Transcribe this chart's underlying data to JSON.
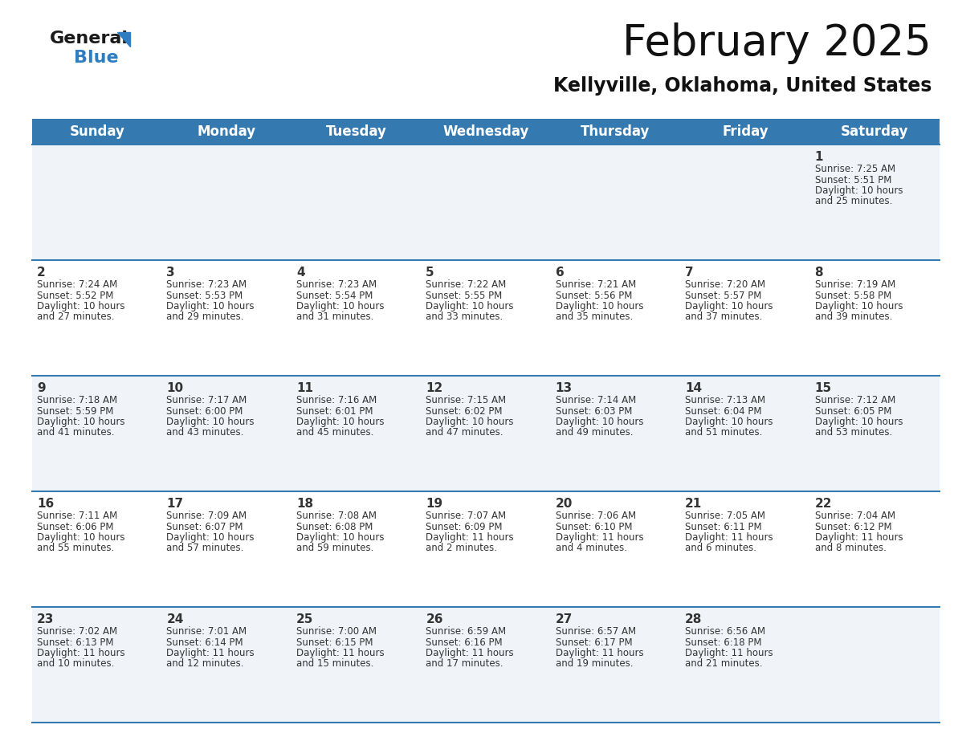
{
  "title": "February 2025",
  "subtitle": "Kellyville, Oklahoma, United States",
  "header_color": "#3579b1",
  "header_text_color": "#ffffff",
  "cell_bg_even": "#f0f4f8",
  "cell_bg_odd": "#ffffff",
  "border_color": "#3579b1",
  "text_color": "#333333",
  "day_names": [
    "Sunday",
    "Monday",
    "Tuesday",
    "Wednesday",
    "Thursday",
    "Friday",
    "Saturday"
  ],
  "title_fontsize": 38,
  "subtitle_fontsize": 17,
  "header_fontsize": 12,
  "day_num_fontsize": 11,
  "cell_fontsize": 8.5,
  "calendar_data": [
    [
      null,
      null,
      null,
      null,
      null,
      null,
      {
        "day": 1,
        "sunrise": "7:25 AM",
        "sunset": "5:51 PM",
        "daylight": "10 hours and 25 minutes."
      }
    ],
    [
      {
        "day": 2,
        "sunrise": "7:24 AM",
        "sunset": "5:52 PM",
        "daylight": "10 hours and 27 minutes."
      },
      {
        "day": 3,
        "sunrise": "7:23 AM",
        "sunset": "5:53 PM",
        "daylight": "10 hours and 29 minutes."
      },
      {
        "day": 4,
        "sunrise": "7:23 AM",
        "sunset": "5:54 PM",
        "daylight": "10 hours and 31 minutes."
      },
      {
        "day": 5,
        "sunrise": "7:22 AM",
        "sunset": "5:55 PM",
        "daylight": "10 hours and 33 minutes."
      },
      {
        "day": 6,
        "sunrise": "7:21 AM",
        "sunset": "5:56 PM",
        "daylight": "10 hours and 35 minutes."
      },
      {
        "day": 7,
        "sunrise": "7:20 AM",
        "sunset": "5:57 PM",
        "daylight": "10 hours and 37 minutes."
      },
      {
        "day": 8,
        "sunrise": "7:19 AM",
        "sunset": "5:58 PM",
        "daylight": "10 hours and 39 minutes."
      }
    ],
    [
      {
        "day": 9,
        "sunrise": "7:18 AM",
        "sunset": "5:59 PM",
        "daylight": "10 hours and 41 minutes."
      },
      {
        "day": 10,
        "sunrise": "7:17 AM",
        "sunset": "6:00 PM",
        "daylight": "10 hours and 43 minutes."
      },
      {
        "day": 11,
        "sunrise": "7:16 AM",
        "sunset": "6:01 PM",
        "daylight": "10 hours and 45 minutes."
      },
      {
        "day": 12,
        "sunrise": "7:15 AM",
        "sunset": "6:02 PM",
        "daylight": "10 hours and 47 minutes."
      },
      {
        "day": 13,
        "sunrise": "7:14 AM",
        "sunset": "6:03 PM",
        "daylight": "10 hours and 49 minutes."
      },
      {
        "day": 14,
        "sunrise": "7:13 AM",
        "sunset": "6:04 PM",
        "daylight": "10 hours and 51 minutes."
      },
      {
        "day": 15,
        "sunrise": "7:12 AM",
        "sunset": "6:05 PM",
        "daylight": "10 hours and 53 minutes."
      }
    ],
    [
      {
        "day": 16,
        "sunrise": "7:11 AM",
        "sunset": "6:06 PM",
        "daylight": "10 hours and 55 minutes."
      },
      {
        "day": 17,
        "sunrise": "7:09 AM",
        "sunset": "6:07 PM",
        "daylight": "10 hours and 57 minutes."
      },
      {
        "day": 18,
        "sunrise": "7:08 AM",
        "sunset": "6:08 PM",
        "daylight": "10 hours and 59 minutes."
      },
      {
        "day": 19,
        "sunrise": "7:07 AM",
        "sunset": "6:09 PM",
        "daylight": "11 hours and 2 minutes."
      },
      {
        "day": 20,
        "sunrise": "7:06 AM",
        "sunset": "6:10 PM",
        "daylight": "11 hours and 4 minutes."
      },
      {
        "day": 21,
        "sunrise": "7:05 AM",
        "sunset": "6:11 PM",
        "daylight": "11 hours and 6 minutes."
      },
      {
        "day": 22,
        "sunrise": "7:04 AM",
        "sunset": "6:12 PM",
        "daylight": "11 hours and 8 minutes."
      }
    ],
    [
      {
        "day": 23,
        "sunrise": "7:02 AM",
        "sunset": "6:13 PM",
        "daylight": "11 hours and 10 minutes."
      },
      {
        "day": 24,
        "sunrise": "7:01 AM",
        "sunset": "6:14 PM",
        "daylight": "11 hours and 12 minutes."
      },
      {
        "day": 25,
        "sunrise": "7:00 AM",
        "sunset": "6:15 PM",
        "daylight": "11 hours and 15 minutes."
      },
      {
        "day": 26,
        "sunrise": "6:59 AM",
        "sunset": "6:16 PM",
        "daylight": "11 hours and 17 minutes."
      },
      {
        "day": 27,
        "sunrise": "6:57 AM",
        "sunset": "6:17 PM",
        "daylight": "11 hours and 19 minutes."
      },
      {
        "day": 28,
        "sunrise": "6:56 AM",
        "sunset": "6:18 PM",
        "daylight": "11 hours and 21 minutes."
      },
      null
    ]
  ]
}
